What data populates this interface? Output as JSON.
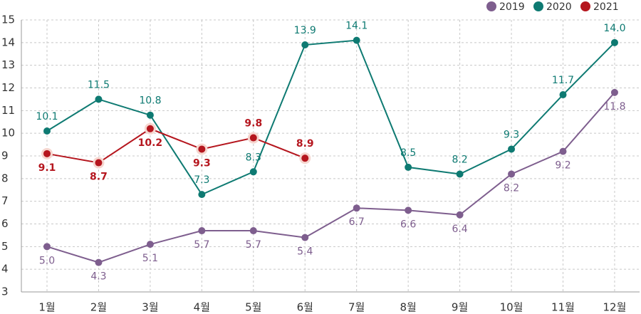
{
  "chart_data": {
    "type": "line",
    "categories": [
      "1월",
      "2월",
      "3월",
      "4월",
      "5월",
      "6월",
      "7월",
      "8월",
      "9월",
      "10월",
      "11월",
      "12월"
    ],
    "series": [
      {
        "name": "2019",
        "color": "#7e5e8e",
        "values": [
          5.0,
          4.3,
          5.1,
          5.7,
          5.7,
          5.4,
          6.7,
          6.6,
          6.4,
          8.2,
          9.2,
          11.8
        ],
        "value_labels": [
          "5.0",
          "4.3",
          "5.1",
          "5.7",
          "5.7",
          "5.4",
          "6.7",
          "6.6",
          "6.4",
          "8.2",
          "9.2",
          "11.8"
        ]
      },
      {
        "name": "2020",
        "color": "#0e7a72",
        "values": [
          10.1,
          11.5,
          10.8,
          7.3,
          8.3,
          13.9,
          14.1,
          8.5,
          8.2,
          9.3,
          11.7,
          14.0
        ],
        "value_labels": [
          "10.1",
          "11.5",
          "10.8",
          "7.3",
          "8.3",
          "13.9",
          "14.1",
          "8.5",
          "8.2",
          "9.3",
          "11.7",
          "14.0"
        ]
      },
      {
        "name": "2021",
        "color": "#b5161e",
        "values": [
          9.1,
          8.7,
          10.2,
          9.3,
          9.8,
          8.9,
          null,
          null,
          null,
          null,
          null,
          null
        ],
        "value_labels": [
          "9.1",
          "8.7",
          "10.2",
          "9.3",
          "9.8",
          "8.9",
          null,
          null,
          null,
          null,
          null,
          null
        ]
      }
    ],
    "ylim": [
      3,
      15
    ],
    "yticks": [
      3,
      4,
      5,
      6,
      7,
      8,
      9,
      10,
      11,
      12,
      13,
      14,
      15
    ],
    "grid": true,
    "legend": "top-right"
  }
}
